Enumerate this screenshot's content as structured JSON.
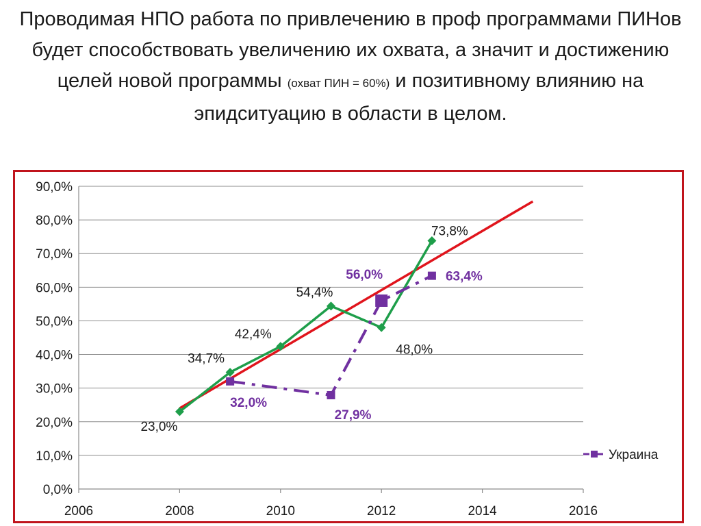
{
  "slide": {
    "title_main": "Проводимая НПО работа по привлечению в проф программами ПИНов будет способствовать увеличению их охвата, а значит и достижению целей новой программы",
    "title_note": "(охват ПИН = 60%)",
    "title_tail": "и позитивному влиянию на эпидситуацию в области в целом."
  },
  "chart_data": {
    "type": "line",
    "title": "",
    "xlabel": "",
    "ylabel": "",
    "xlim": [
      2006,
      2016
    ],
    "ylim": [
      0,
      90
    ],
    "x_ticks": [
      2006,
      2008,
      2010,
      2012,
      2014,
      2016
    ],
    "x_tick_labels": [
      "2006",
      "2008",
      "2010",
      "2012",
      "2014",
      "2016"
    ],
    "y_ticks": [
      0,
      10,
      20,
      30,
      40,
      50,
      60,
      70,
      80,
      90
    ],
    "y_tick_labels": [
      "0,0%",
      "10,0%",
      "20,0%",
      "30,0%",
      "40,0%",
      "50,0%",
      "60,0%",
      "70,0%",
      "80,0%",
      "90,0%"
    ],
    "grid": true,
    "legend_position": "right",
    "series": [
      {
        "name": "",
        "style": "solid",
        "marker": "diamond",
        "color": "#1e9e4a",
        "x": [
          2008,
          2009,
          2010,
          2011,
          2012,
          2013
        ],
        "y": [
          23.0,
          34.7,
          42.4,
          54.4,
          48.0,
          73.8
        ],
        "labels": [
          "23,0%",
          "34,7%",
          "42,4%",
          "54,4%",
          "48,0%",
          "73,8%"
        ]
      },
      {
        "name": "Украина",
        "style": "dashdot",
        "marker": "square",
        "color": "#7030a0",
        "x": [
          2009,
          2011,
          2012,
          2013
        ],
        "y": [
          32.0,
          27.9,
          56.0,
          63.4
        ],
        "labels": [
          "32,0%",
          "27,9%",
          "56,0%",
          "63,4%"
        ]
      }
    ],
    "trendline": {
      "color": "#e0141c",
      "x": [
        2008,
        2015
      ],
      "y": [
        24.0,
        85.5
      ]
    }
  }
}
